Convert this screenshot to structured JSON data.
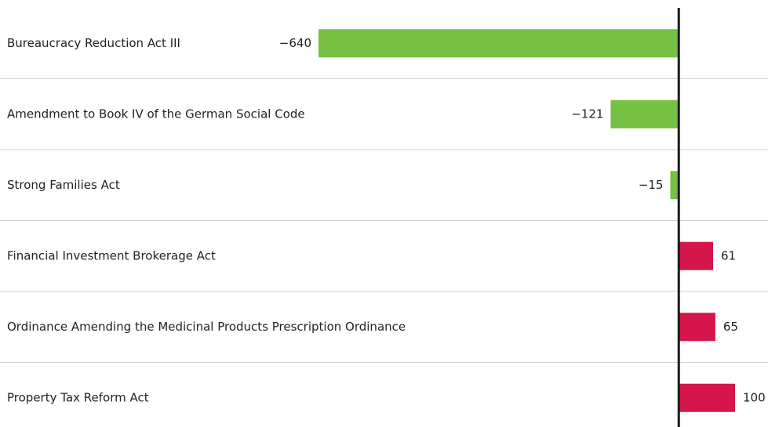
{
  "chart_data": {
    "type": "bar",
    "orientation": "horizontal",
    "categories": [
      "Bureaucracy Reduction Act III",
      "Amendment to Book IV of the German Social Code",
      "Strong Families Act",
      "Financial Investment Brokerage Act",
      "Ordinance Amending the Medicinal Products Prescription Ordinance",
      "Property Tax Reform Act"
    ],
    "values": [
      -640,
      -121,
      -15,
      61,
      65,
      100
    ],
    "value_labels": [
      "−640",
      "−121",
      "−15",
      "61",
      "65",
      "100"
    ],
    "colors": {
      "negative": "#76c043",
      "positive": "#d4164b"
    }
  }
}
